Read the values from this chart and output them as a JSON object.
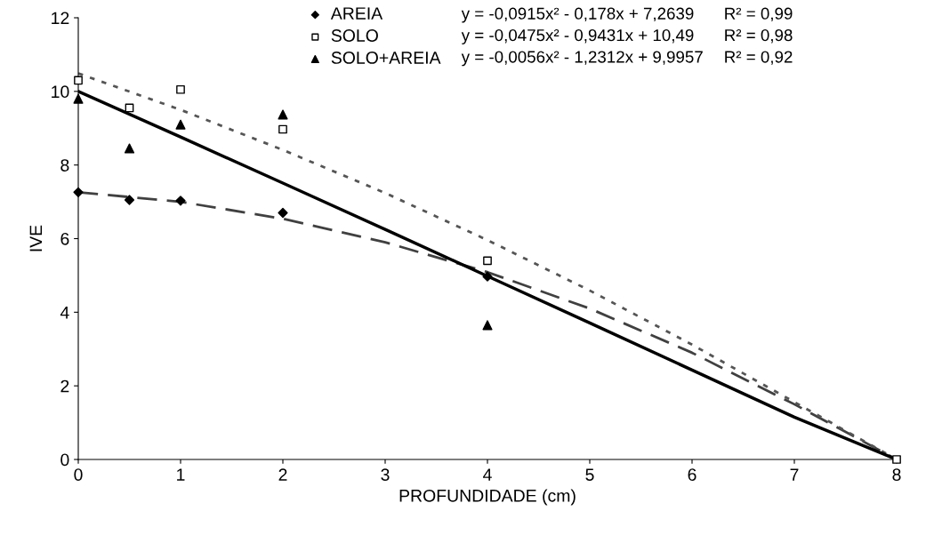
{
  "chart_data": {
    "type": "scatter",
    "xlabel": "PROFUNDIDADE (cm)",
    "ylabel": "IVE",
    "xlim": [
      0,
      8
    ],
    "xticks": [
      0,
      1,
      2,
      3,
      4,
      5,
      6,
      7,
      8
    ],
    "ylim": [
      0,
      12
    ],
    "yticks": [
      0,
      2,
      4,
      6,
      8,
      10,
      12
    ],
    "grid": false,
    "legend": "top",
    "series": [
      {
        "name": "AREIA",
        "marker": "diamond",
        "color": "#000000",
        "x": [
          0,
          0.5,
          1,
          2,
          4
        ],
        "values": [
          7.26,
          7.05,
          7.03,
          6.7,
          4.97
        ]
      },
      {
        "name": "SOLO",
        "marker": "square",
        "color": "#000000",
        "x": [
          0,
          0.5,
          1,
          2,
          4,
          8
        ],
        "values": [
          10.3,
          9.55,
          10.05,
          8.97,
          5.4,
          0
        ]
      },
      {
        "name": "SOLO+AREIA",
        "marker": "triangle",
        "color": "#000000",
        "x": [
          0,
          0.5,
          1,
          2,
          4
        ],
        "values": [
          9.8,
          8.45,
          9.1,
          9.37,
          3.65
        ]
      },
      {
        "type": "line",
        "line_style": "dashed",
        "color": "#404040",
        "x": [
          0,
          1,
          2,
          3,
          4,
          5,
          6,
          7,
          8
        ],
        "values": [
          7.26,
          7.0,
          6.54,
          5.9,
          5.09,
          4.1,
          2.9,
          1.5,
          0
        ]
      },
      {
        "type": "line",
        "line_style": "dotted",
        "color": "#555555",
        "x": [
          0,
          1,
          2,
          3,
          4,
          5,
          6,
          7,
          8
        ],
        "values": [
          10.49,
          9.5,
          8.41,
          7.24,
          5.96,
          4.59,
          3.12,
          1.56,
          0
        ]
      },
      {
        "type": "line",
        "line_style": "solid",
        "color": "#000000",
        "x": [
          0,
          1,
          2,
          3,
          4,
          5,
          6,
          7,
          8
        ],
        "values": [
          10.0,
          8.76,
          7.51,
          6.25,
          4.98,
          3.71,
          2.43,
          1.15,
          0
        ]
      }
    ],
    "annotations": [
      "y = -0,0915x² - 0,178x + 7,2639",
      "R² = 0,99",
      "y = -0,0475x² - 0,9431x + 10,49",
      "R² = 0,98",
      "y = -0,0056x² - 1,2312x + 9,9957",
      "R² = 0,92"
    ]
  }
}
